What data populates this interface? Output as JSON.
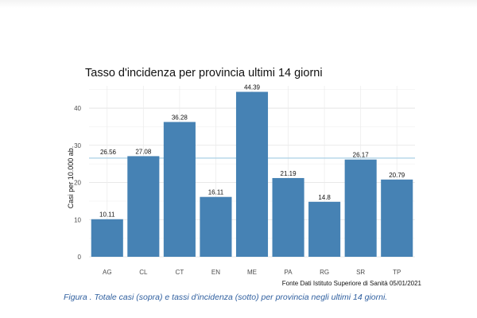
{
  "chart_data": {
    "type": "bar",
    "title": "Tasso d'incidenza per provincia ultimi 14 giorni",
    "xlabel": "",
    "ylabel": "Casi per 10.000 ab.",
    "categories": [
      "AG",
      "CL",
      "CT",
      "EN",
      "ME",
      "PA",
      "RG",
      "SR",
      "TP"
    ],
    "values": [
      10.11,
      27.08,
      36.28,
      16.11,
      44.39,
      21.19,
      14.8,
      26.17,
      20.79
    ],
    "value_labels": [
      "10.11",
      "27.08",
      "36.28",
      "16.11",
      "44.39",
      "21.19",
      "14.8",
      "26.17",
      "20.79"
    ],
    "y_ticks": [
      0,
      10,
      20,
      30,
      40
    ],
    "ylim": [
      0,
      46
    ],
    "reference_line": {
      "value": 26.56,
      "label": "26.56",
      "color": "#a9cfe6"
    },
    "bar_color": "#4682b4",
    "grid": true,
    "source": "Fonte Dati Istituto Superiore di Sanità 05/01/2021"
  },
  "caption": "Figura . Totale casi (sopra) e tassi d'incidenza (sotto) per provincia negli ultimi 14 giorni."
}
